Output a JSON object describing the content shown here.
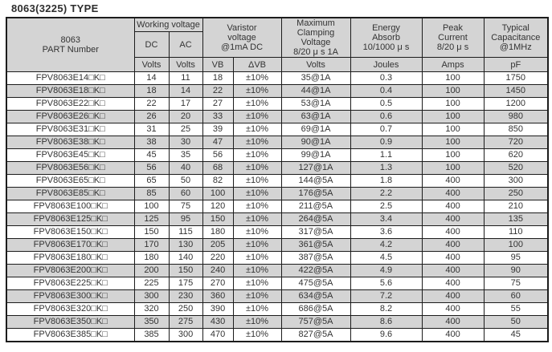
{
  "page_title": "8063(3225) TYPE",
  "colors": {
    "header_bg": "#d4d4d4",
    "alt_row_bg": "#d4d4d4",
    "border": "#1c1c1c",
    "text": "#333333"
  },
  "table": {
    "header": {
      "part_number": "8063\nPART Number",
      "working_voltage": "Working voltage",
      "dc": "DC",
      "ac": "AC",
      "varistor_voltage": "Varistor\nvoltage\n@1mA DC",
      "max_clamping": "Maximum\nClamping\nVoltage\n8/20 μ s 1A",
      "energy_absorb": "Energy\nAbsorb\n10/1000 μ s",
      "peak_current": "Peak\nCurrent\n8/20 μ s",
      "typical_capacitance": "Typical\nCapacitance\n@1MHz",
      "volts": "Volts",
      "vb": "VB",
      "delta_vb": "ΔVB",
      "joules": "Joules",
      "amps": "Amps",
      "pf": "pF"
    },
    "rows": [
      {
        "part": "FPV8063E14□K□",
        "dc": "14",
        "ac": "11",
        "vb": "18",
        "dvb": "±10%",
        "clamping": "35@1A",
        "joules": "0.3",
        "amps": "100",
        "pf": "1750"
      },
      {
        "part": "FPV8063E18□K□",
        "dc": "18",
        "ac": "14",
        "vb": "22",
        "dvb": "±10%",
        "clamping": "44@1A",
        "joules": "0.4",
        "amps": "100",
        "pf": "1450"
      },
      {
        "part": "FPV8063E22□K□",
        "dc": "22",
        "ac": "17",
        "vb": "27",
        "dvb": "±10%",
        "clamping": "53@1A",
        "joules": "0.5",
        "amps": "100",
        "pf": "1200"
      },
      {
        "part": "FPV8063E26□K□",
        "dc": "26",
        "ac": "20",
        "vb": "33",
        "dvb": "±10%",
        "clamping": "63@1A",
        "joules": "0.6",
        "amps": "100",
        "pf": "980"
      },
      {
        "part": "FPV8063E31□K□",
        "dc": "31",
        "ac": "25",
        "vb": "39",
        "dvb": "±10%",
        "clamping": "69@1A",
        "joules": "0.7",
        "amps": "100",
        "pf": "850"
      },
      {
        "part": "FPV8063E38□K□",
        "dc": "38",
        "ac": "30",
        "vb": "47",
        "dvb": "±10%",
        "clamping": "90@1A",
        "joules": "0.9",
        "amps": "100",
        "pf": "720"
      },
      {
        "part": "FPV8063E45□K□",
        "dc": "45",
        "ac": "35",
        "vb": "56",
        "dvb": "±10%",
        "clamping": "99@1A",
        "joules": "1.1",
        "amps": "100",
        "pf": "620"
      },
      {
        "part": "FPV8063E56□K□",
        "dc": "56",
        "ac": "40",
        "vb": "68",
        "dvb": "±10%",
        "clamping": "127@1A",
        "joules": "1.3",
        "amps": "100",
        "pf": "520"
      },
      {
        "part": "FPV8063E65□K□",
        "dc": "65",
        "ac": "50",
        "vb": "82",
        "dvb": "±10%",
        "clamping": "144@5A",
        "joules": "1.8",
        "amps": "400",
        "pf": "300"
      },
      {
        "part": "FPV8063E85□K□",
        "dc": "85",
        "ac": "60",
        "vb": "100",
        "dvb": "±10%",
        "clamping": "176@5A",
        "joules": "2.2",
        "amps": "400",
        "pf": "250"
      },
      {
        "part": "FPV8063E100□K□",
        "dc": "100",
        "ac": "75",
        "vb": "120",
        "dvb": "±10%",
        "clamping": "211@5A",
        "joules": "2.5",
        "amps": "400",
        "pf": "210"
      },
      {
        "part": "FPV8063E125□K□",
        "dc": "125",
        "ac": "95",
        "vb": "150",
        "dvb": "±10%",
        "clamping": "264@5A",
        "joules": "3.4",
        "amps": "400",
        "pf": "135"
      },
      {
        "part": "FPV8063E150□K□",
        "dc": "150",
        "ac": "115",
        "vb": "180",
        "dvb": "±10%",
        "clamping": "317@5A",
        "joules": "3.6",
        "amps": "400",
        "pf": "110"
      },
      {
        "part": "FPV8063E170□K□",
        "dc": "170",
        "ac": "130",
        "vb": "205",
        "dvb": "±10%",
        "clamping": "361@5A",
        "joules": "4.2",
        "amps": "400",
        "pf": "100"
      },
      {
        "part": "FPV8063E180□K□",
        "dc": "180",
        "ac": "140",
        "vb": "220",
        "dvb": "±10%",
        "clamping": "387@5A",
        "joules": "4.5",
        "amps": "400",
        "pf": "95"
      },
      {
        "part": "FPV8063E200□K□",
        "dc": "200",
        "ac": "150",
        "vb": "240",
        "dvb": "±10%",
        "clamping": "422@5A",
        "joules": "4.9",
        "amps": "400",
        "pf": "90"
      },
      {
        "part": "FPV8063E225□K□",
        "dc": "225",
        "ac": "175",
        "vb": "270",
        "dvb": "±10%",
        "clamping": "475@5A",
        "joules": "5.6",
        "amps": "400",
        "pf": "75"
      },
      {
        "part": "FPV8063E300□K□",
        "dc": "300",
        "ac": "230",
        "vb": "360",
        "dvb": "±10%",
        "clamping": "634@5A",
        "joules": "7.2",
        "amps": "400",
        "pf": "60"
      },
      {
        "part": "FPV8063E320□K□",
        "dc": "320",
        "ac": "250",
        "vb": "390",
        "dvb": "±10%",
        "clamping": "686@5A",
        "joules": "8.2",
        "amps": "400",
        "pf": "55"
      },
      {
        "part": "FPV8063E350□K□",
        "dc": "350",
        "ac": "275",
        "vb": "430",
        "dvb": "±10%",
        "clamping": "757@5A",
        "joules": "8.6",
        "amps": "400",
        "pf": "50"
      },
      {
        "part": "FPV8063E385□K□",
        "dc": "385",
        "ac": "300",
        "vb": "470",
        "dvb": "±10%",
        "clamping": "827@5A",
        "joules": "9.6",
        "amps": "400",
        "pf": "45"
      }
    ]
  }
}
